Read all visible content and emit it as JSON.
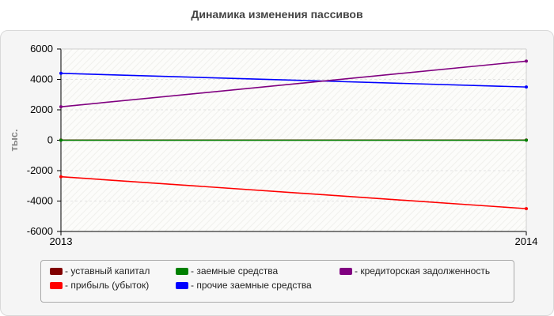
{
  "title": "Динамика изменения пассивов",
  "chart_data": {
    "type": "line",
    "x": [
      "2013",
      "2014"
    ],
    "ylabel": "тыс.",
    "ylim": [
      -6000,
      6000
    ],
    "yticks": [
      "6000",
      "4000",
      "2000",
      "0",
      "-2000",
      "-4000",
      "-6000"
    ],
    "grid": true,
    "legend_position": "bottom",
    "series": [
      {
        "name": "- уставный капитал",
        "values": [
          10,
          10
        ],
        "color": "#800000"
      },
      {
        "name": "- прибыль (убыток)",
        "values": [
          -2400,
          -4500
        ],
        "color": "#ff0000"
      },
      {
        "name": "- заемные средства",
        "values": [
          0,
          0
        ],
        "color": "#008000"
      },
      {
        "name": "- прочие заемные средства",
        "values": [
          4400,
          3500
        ],
        "color": "#0000ff"
      },
      {
        "name": "- кредиторская задолженность",
        "values": [
          2200,
          5200
        ],
        "color": "#800080"
      }
    ]
  }
}
